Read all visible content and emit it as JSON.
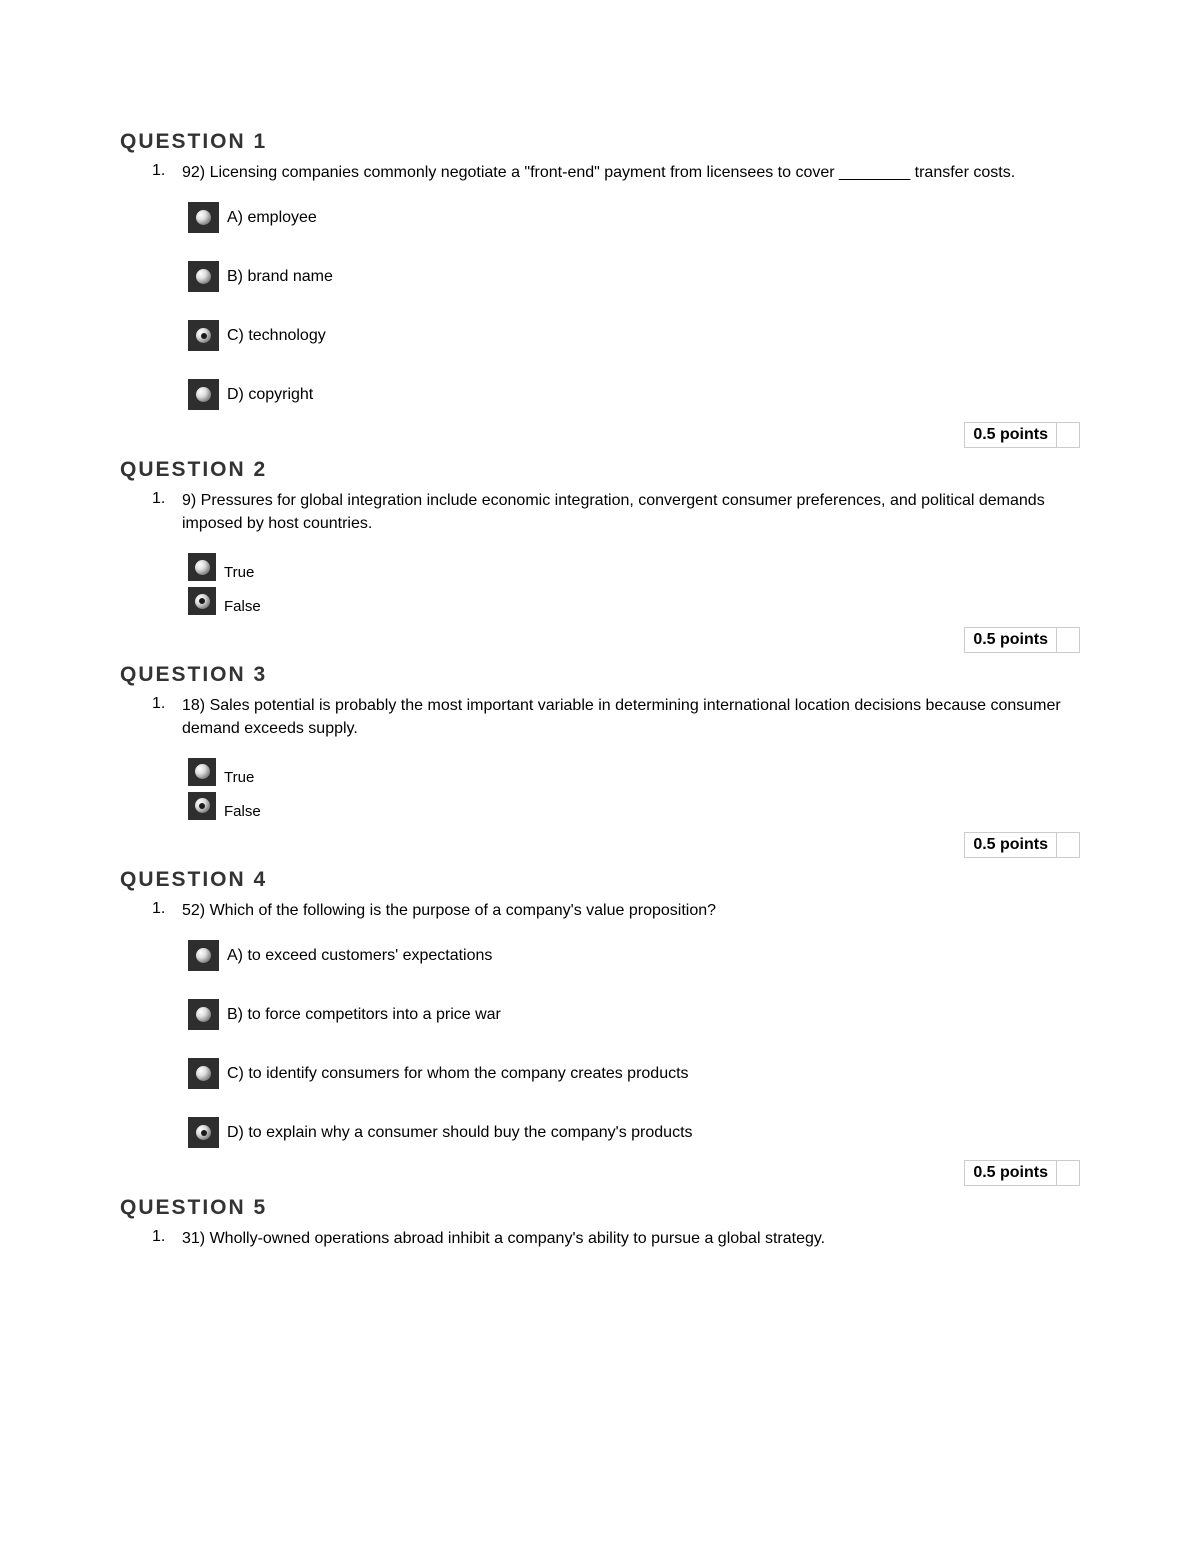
{
  "header_prefix": "QUESTION",
  "points_label": "0.5 points",
  "list_marker": "1.",
  "questions": [
    {
      "num": "1",
      "prompt": "92) Licensing companies commonly negotiate a \"front-end\" payment from licensees to cover ________ transfer costs.",
      "type": "mc",
      "options": [
        {
          "label": "A) employee",
          "selected": false
        },
        {
          "label": "B) brand name",
          "selected": false
        },
        {
          "label": "C) technology",
          "selected": true
        },
        {
          "label": "D) copyright",
          "selected": false
        }
      ],
      "show_points": true
    },
    {
      "num": "2",
      "prompt": "9) Pressures for global integration include economic integration, convergent consumer preferences, and political demands imposed by host countries.",
      "type": "tf",
      "options": [
        {
          "label": "True",
          "selected": false
        },
        {
          "label": "False",
          "selected": true
        }
      ],
      "show_points": true
    },
    {
      "num": "3",
      "prompt": "18) Sales potential is probably the most important variable in determining international location decisions because consumer demand exceeds supply.",
      "type": "tf",
      "options": [
        {
          "label": "True",
          "selected": false
        },
        {
          "label": "False",
          "selected": true
        }
      ],
      "show_points": true
    },
    {
      "num": "4",
      "prompt": "52) Which of the following is the purpose of a company's value proposition?",
      "type": "mc",
      "options": [
        {
          "label": "A) to exceed customers' expectations",
          "selected": false
        },
        {
          "label": "B) to force competitors into a price war",
          "selected": false
        },
        {
          "label": "C) to identify consumers for whom the company creates products",
          "selected": false
        },
        {
          "label": "D) to explain why a consumer should buy the company's products",
          "selected": true
        }
      ],
      "show_points": true
    },
    {
      "num": "5",
      "prompt": "31) Wholly-owned operations abroad inhibit a company's ability to pursue a global strategy.",
      "type": "none",
      "options": [],
      "show_points": false
    }
  ]
}
